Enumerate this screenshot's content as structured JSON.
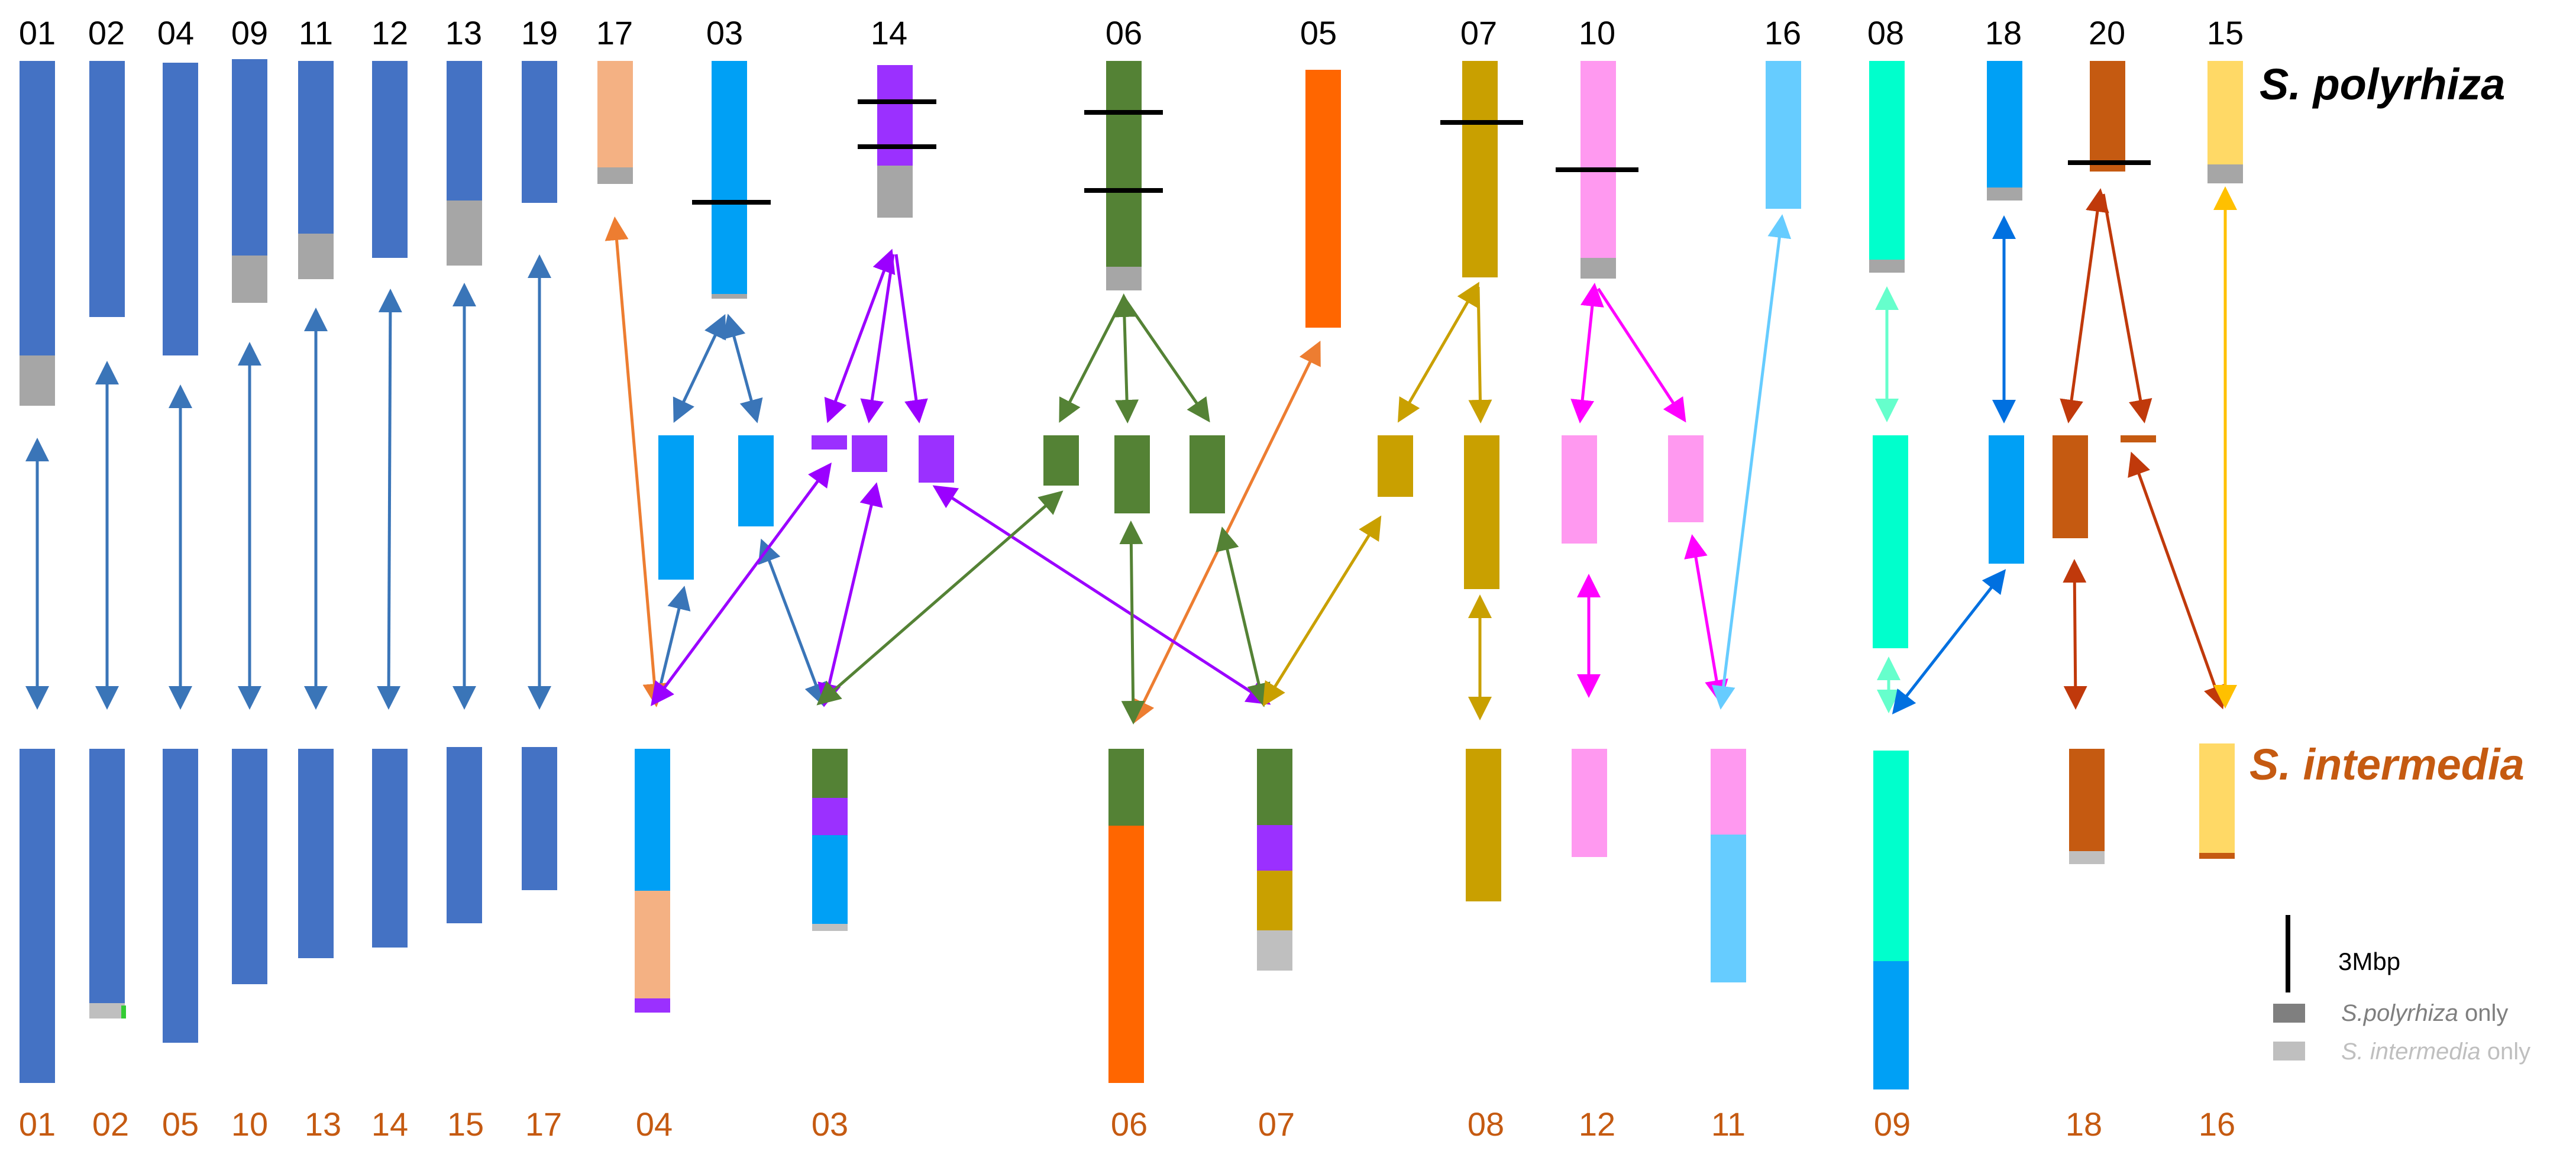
{
  "species": {
    "top": "S. polyrhiza",
    "bottom": "S. intermedia"
  },
  "top_labels": [
    "01",
    "02",
    "04",
    "09",
    "11",
    "12",
    "13",
    "19",
    "17",
    "03",
    "14",
    "06",
    "05",
    "07",
    "10",
    "16",
    "08",
    "18",
    "20",
    "15"
  ],
  "bottom_labels": [
    "01",
    "02",
    "05",
    "10",
    "13",
    "14",
    "15",
    "17",
    "04",
    "03",
    "06",
    "07",
    "08",
    "12",
    "11",
    "09",
    "18",
    "16"
  ],
  "scale_bar": {
    "label": "3Mbp"
  },
  "legend": {
    "polyrhiza_only": {
      "italic": "S.polyrhiza",
      "rest": " only",
      "color": "#7f7f7f"
    },
    "intermedia_only": {
      "italic": "S. intermedia",
      "rest": " only",
      "color": "#bfbfbf"
    }
  },
  "colors": {
    "blue": "#4472c4",
    "azure": "#00a0f5",
    "peach": "#f4b183",
    "purple": "#9b30ff",
    "green": "#548235",
    "orange": "#ff6600",
    "gold": "#c9a000",
    "pink": "#ff99f0",
    "skyblue": "#66ccff",
    "teal": "#00ffcc",
    "brown": "#c55a11",
    "yellow": "#ffd966",
    "dark_gray": "#a6a6a6",
    "light_gray": "#c0c0c0"
  }
}
